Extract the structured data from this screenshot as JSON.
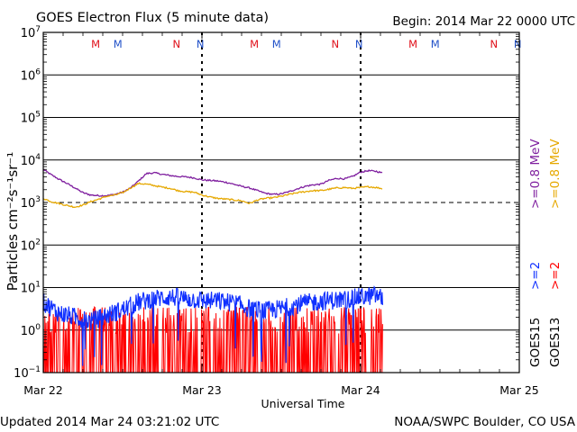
{
  "header": {
    "title": "GOES Electron Flux (5 minute data)",
    "begin": "Begin: 2014 Mar 22 0000 UTC"
  },
  "footer": {
    "updated": "Updated 2014 Mar 24 03:21:02 UTC",
    "credit": "NOAA/SWPC Boulder, CO USA"
  },
  "colors": {
    "purple": "#7f1f9f",
    "orange": "#e6a800",
    "blue": "#1030ff",
    "red": "#ff0000",
    "marker_red": "#e0101a",
    "marker_blue": "#2050c8"
  },
  "chart_data": {
    "type": "line",
    "title": "GOES Electron Flux (5 minute data)",
    "xlabel": "Universal Time",
    "ylabel": "Particles cm⁻²s⁻¹sr⁻¹",
    "y_scale": "log",
    "ylim": [
      0.1,
      10000000
    ],
    "y_ticks": [
      {
        "value": 0.1,
        "mantissa": "10",
        "exp": "−1"
      },
      {
        "value": 1,
        "mantissa": "10",
        "exp": "0"
      },
      {
        "value": 10,
        "mantissa": "10",
        "exp": "1"
      },
      {
        "value": 100,
        "mantissa": "10",
        "exp": "2"
      },
      {
        "value": 1000,
        "mantissa": "10",
        "exp": "3"
      },
      {
        "value": 10000,
        "mantissa": "10",
        "exp": "4"
      },
      {
        "value": 100000,
        "mantissa": "10",
        "exp": "5"
      },
      {
        "value": 1000000,
        "mantissa": "10",
        "exp": "6"
      },
      {
        "value": 10000000,
        "mantissa": "10",
        "exp": "7"
      }
    ],
    "xlim_days": [
      0,
      3
    ],
    "x_ticks": [
      {
        "day": 0,
        "label": "Mar 22"
      },
      {
        "day": 1,
        "label": "Mar 23"
      },
      {
        "day": 2,
        "label": "Mar 24"
      },
      {
        "day": 3,
        "label": "Mar 25"
      }
    ],
    "threshold": 1000,
    "day_boundaries": [
      1,
      2
    ],
    "markers": [
      {
        "day": 0.33,
        "label": "M",
        "color": "marker_red"
      },
      {
        "day": 0.47,
        "label": "M",
        "color": "marker_blue"
      },
      {
        "day": 0.84,
        "label": "N",
        "color": "marker_red"
      },
      {
        "day": 0.99,
        "label": "N",
        "color": "marker_blue"
      },
      {
        "day": 1.33,
        "label": "M",
        "color": "marker_red"
      },
      {
        "day": 1.47,
        "label": "M",
        "color": "marker_blue"
      },
      {
        "day": 1.84,
        "label": "N",
        "color": "marker_red"
      },
      {
        "day": 1.99,
        "label": "N",
        "color": "marker_blue"
      },
      {
        "day": 2.33,
        "label": "M",
        "color": "marker_red"
      },
      {
        "day": 2.47,
        "label": "M",
        "color": "marker_blue"
      },
      {
        "day": 2.84,
        "label": "N",
        "color": "marker_red"
      },
      {
        "day": 2.99,
        "label": "N",
        "color": "marker_blue"
      }
    ],
    "series": [
      {
        "name": "GOES15 >=0.8 MeV",
        "color": "purple",
        "style": "line",
        "x": [
          0,
          0.05,
          0.1,
          0.15,
          0.2,
          0.25,
          0.3,
          0.35,
          0.4,
          0.45,
          0.5,
          0.55,
          0.6,
          0.65,
          0.7,
          0.75,
          0.8,
          0.85,
          0.9,
          0.95,
          1.0,
          1.05,
          1.1,
          1.15,
          1.2,
          1.25,
          1.3,
          1.35,
          1.4,
          1.45,
          1.5,
          1.55,
          1.6,
          1.65,
          1.7,
          1.75,
          1.8,
          1.85,
          1.9,
          1.95,
          2.0,
          2.05,
          2.1,
          2.14
        ],
        "values": [
          6000,
          4500,
          3500,
          2800,
          2200,
          1700,
          1500,
          1450,
          1450,
          1550,
          1750,
          2200,
          3200,
          4800,
          5000,
          4600,
          4300,
          4100,
          4000,
          3800,
          3400,
          3300,
          3200,
          3000,
          2700,
          2400,
          2200,
          1900,
          1650,
          1550,
          1600,
          1800,
          2100,
          2400,
          2600,
          2700,
          3300,
          3700,
          3600,
          4100,
          5200,
          5600,
          5400,
          4900
        ]
      },
      {
        "name": "GOES13 >=0.8 MeV",
        "color": "orange",
        "style": "line",
        "x": [
          0,
          0.05,
          0.1,
          0.15,
          0.2,
          0.25,
          0.3,
          0.35,
          0.4,
          0.45,
          0.5,
          0.55,
          0.6,
          0.65,
          0.7,
          0.75,
          0.8,
          0.85,
          0.9,
          0.95,
          1.0,
          1.05,
          1.1,
          1.15,
          1.2,
          1.25,
          1.3,
          1.35,
          1.4,
          1.45,
          1.5,
          1.55,
          1.6,
          1.65,
          1.7,
          1.75,
          1.8,
          1.85,
          1.9,
          1.95,
          2.0,
          2.05,
          2.1,
          2.14
        ],
        "values": [
          1250,
          1050,
          950,
          850,
          780,
          870,
          1050,
          1200,
          1400,
          1500,
          1700,
          2200,
          2800,
          2700,
          2500,
          2300,
          2150,
          1900,
          1800,
          1750,
          1500,
          1350,
          1250,
          1200,
          1150,
          1100,
          950,
          1150,
          1250,
          1300,
          1400,
          1550,
          1700,
          1800,
          1900,
          1900,
          2050,
          2200,
          2250,
          2150,
          2250,
          2350,
          2250,
          2100
        ]
      },
      {
        "name": "GOES13 >=2 MeV",
        "color": "red",
        "style": "spiky",
        "x_range": [
          0,
          2.14
        ],
        "level_range": [
          0.8,
          3.5
        ],
        "floor": 0.1
      },
      {
        "name": "GOES15 >=2 MeV",
        "color": "blue",
        "style": "noisy",
        "x": [
          0,
          0.1,
          0.2,
          0.3,
          0.4,
          0.5,
          0.6,
          0.7,
          0.8,
          0.9,
          1.0,
          1.1,
          1.2,
          1.3,
          1.4,
          1.5,
          1.6,
          1.7,
          1.8,
          1.9,
          2.0,
          2.1,
          2.14
        ],
        "values": [
          4.5,
          2.5,
          2,
          1.6,
          2.2,
          3,
          4.5,
          5.5,
          6,
          5.5,
          5,
          4.8,
          4.4,
          3.2,
          2.8,
          3.2,
          4,
          4.5,
          5,
          5.2,
          6,
          6.5,
          5.5
        ]
      }
    ],
    "legend": [
      {
        "text": ">=0.8 MeV",
        "color": "purple",
        "x": 598
      },
      {
        "text": ">=0.8 MeV",
        "color": "orange",
        "x": 620
      },
      {
        "text": ">=2",
        "color": "blue",
        "x": 598
      },
      {
        "text": ">=2",
        "color": "red",
        "x": 620
      },
      {
        "text": "GOES15",
        "color": "#000000",
        "x": 598
      },
      {
        "text": "GOES13",
        "color": "#000000",
        "x": 620
      }
    ]
  }
}
